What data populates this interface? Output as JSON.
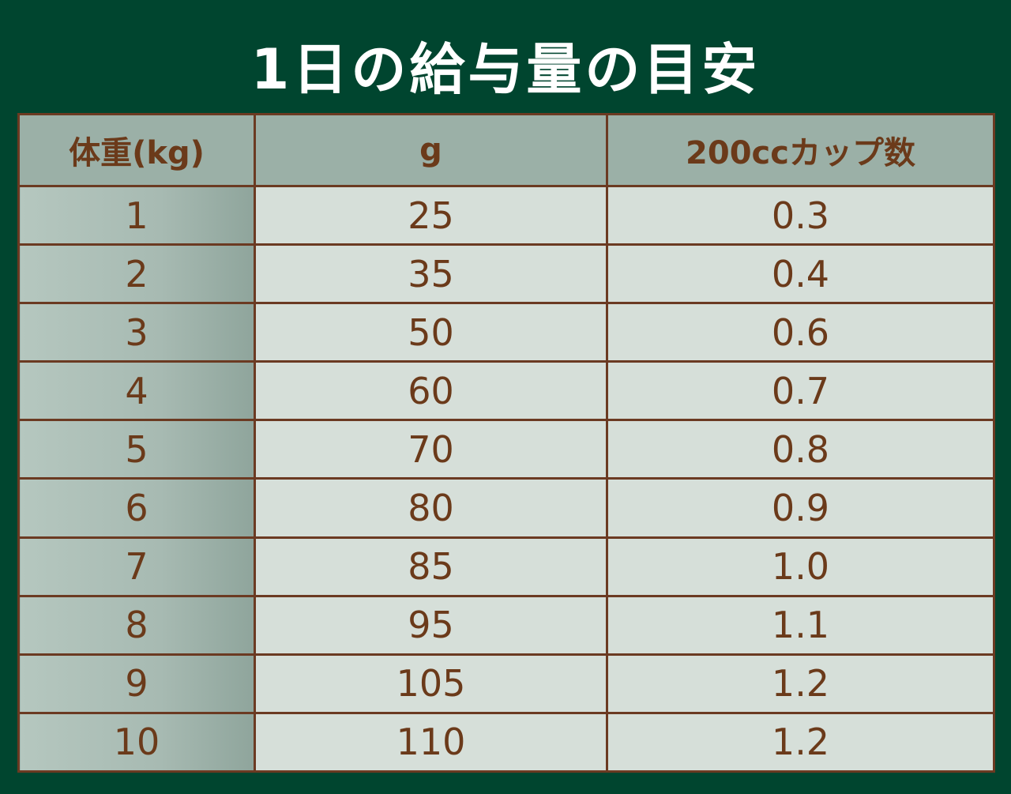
{
  "title": "1日の給与量の目安",
  "table": {
    "headers": [
      "体重(kg)",
      "g",
      "200ccカップ数"
    ],
    "rows": [
      [
        "1",
        "25",
        "0.3"
      ],
      [
        "2",
        "35",
        "0.4"
      ],
      [
        "3",
        "50",
        "0.6"
      ],
      [
        "4",
        "60",
        "0.7"
      ],
      [
        "5",
        "70",
        "0.8"
      ],
      [
        "6",
        "80",
        "0.9"
      ],
      [
        "7",
        "85",
        "1.0"
      ],
      [
        "8",
        "95",
        "1.1"
      ],
      [
        "9",
        "105",
        "1.2"
      ],
      [
        "10",
        "110",
        "1.2"
      ]
    ]
  },
  "colors": {
    "background": "#00452f",
    "header_bg": "#9bb0a7",
    "cell_bg": "#d6dfd9",
    "border": "#6b3a22",
    "text": "#6b3a1a",
    "title_text": "#ffffff"
  }
}
